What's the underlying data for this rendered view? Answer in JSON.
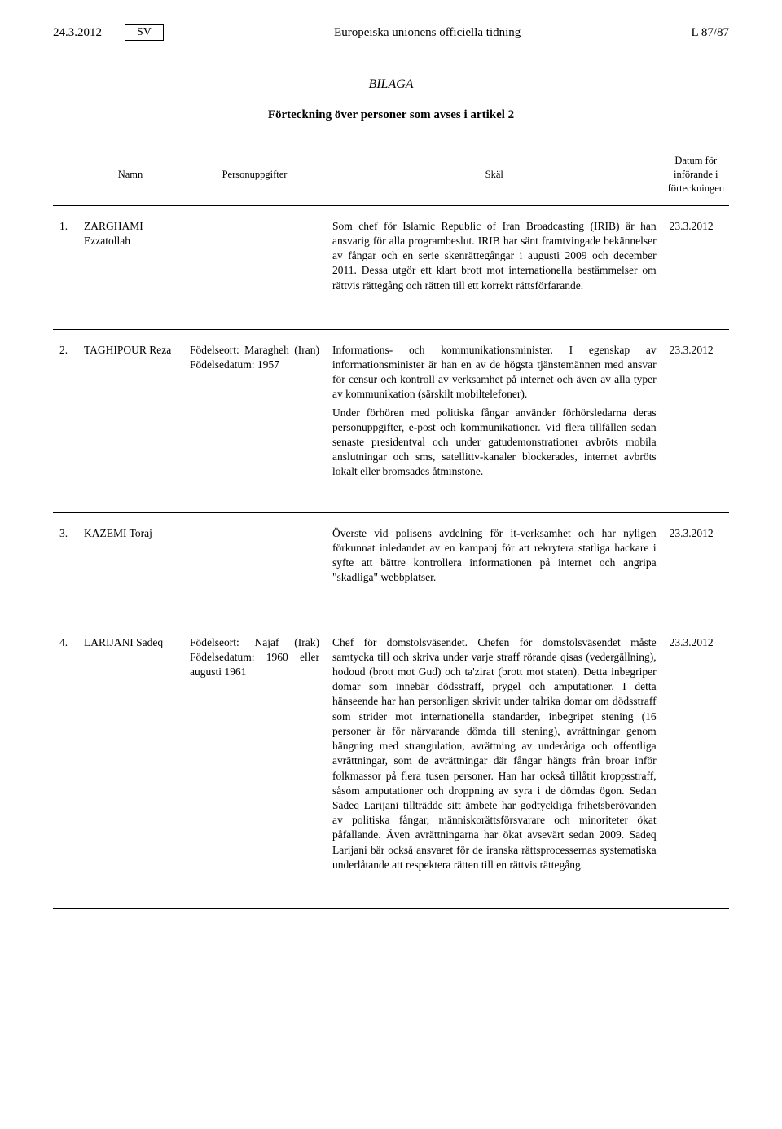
{
  "header": {
    "date": "24.3.2012",
    "lang": "SV",
    "journal": "Europeiska unionens officiella tidning",
    "page": "L 87/87"
  },
  "annex_title": "BILAGA",
  "list_title": "Förteckning över personer som avses i artikel 2",
  "columns": {
    "name": "Namn",
    "info": "Personuppgifter",
    "reason": "Skäl",
    "date": "Datum för införande i förteckningen"
  },
  "rows": [
    {
      "num": "1.",
      "name": "ZARGHAMI Ezzatollah",
      "info": "",
      "reason": "Som chef för Islamic Republic of Iran Broadcasting (IRIB) är han ansvarig för alla programbeslut. IRIB har sänt framtvingade bekännelser av fångar och en serie skenrättegångar i augusti 2009 och december 2011. Dessa utgör ett klart brott mot internationella bestämmelser om rättvis rättegång och rätten till ett korrekt rättsförfarande.",
      "reason2": "",
      "date": "23.3.2012"
    },
    {
      "num": "2.",
      "name": "TAGHIPOUR Reza",
      "info": "Födelseort: Maragheh (Iran) Födelsedatum: 1957",
      "reason": "Informations- och kommunikationsminister. I egenskap av informationsminister är han en av de högsta tjänstemännen med ansvar för censur och kontroll av verksamhet på internet och även av alla typer av kommunikation (särskilt mobiltelefoner).",
      "reason2": "Under förhören med politiska fångar använder förhörsledarna deras personuppgifter, e-post och kommunikationer. Vid flera tillfällen sedan senaste presidentval och under gatudemonstrationer avbröts mobila anslutningar och sms, satellittv-kanaler blockerades, internet avbröts lokalt eller bromsades åtminstone.",
      "date": "23.3.2012"
    },
    {
      "num": "3.",
      "name": "KAZEMI Toraj",
      "info": "",
      "reason": "Överste vid polisens avdelning för it-verksamhet och har nyligen förkunnat inledandet av en kampanj för att rekrytera statliga hackare i syfte att bättre kontrollera informationen på internet och angripa \"skadliga\" webbplatser.",
      "reason2": "",
      "date": "23.3.2012"
    },
    {
      "num": "4.",
      "name": "LARIJANI Sadeq",
      "info": "Födelseort: Najaf (Irak) Födelsedatum: 1960 eller augusti 1961",
      "reason": "Chef för domstolsväsendet. Chefen för domstolsväsendet måste samtycka till och skriva under varje straff rörande qisas (vedergällning), hodoud (brott mot Gud) och ta'zirat (brott mot staten). Detta inbegriper domar som innebär dödsstraff, prygel och amputationer. I detta hänseende har han personligen skrivit under talrika domar om dödsstraff som strider mot internationella standarder, inbegripet stening (16 personer är för närvarande dömda till stening), avrättningar genom hängning med strangulation, avrättning av underåriga och offentliga avrättningar, som de avrättningar där fångar hängts från broar inför folkmassor på flera tusen personer. Han har också tillåtit kroppsstraff, såsom amputationer och droppning av syra i de dömdas ögon. Sedan Sadeq Larijani tillträdde sitt ämbete har godtyckliga frihetsberövanden av politiska fångar, människorättsförsvarare och minoriteter ökat påfallande. Även avrättningarna har ökat avsevärt sedan 2009. Sadeq Larijani bär också ansvaret för de iranska rättsprocessernas systematiska underlåtande att respektera rätten till en rättvis rättegång.",
      "reason2": "",
      "date": "23.3.2012"
    }
  ]
}
